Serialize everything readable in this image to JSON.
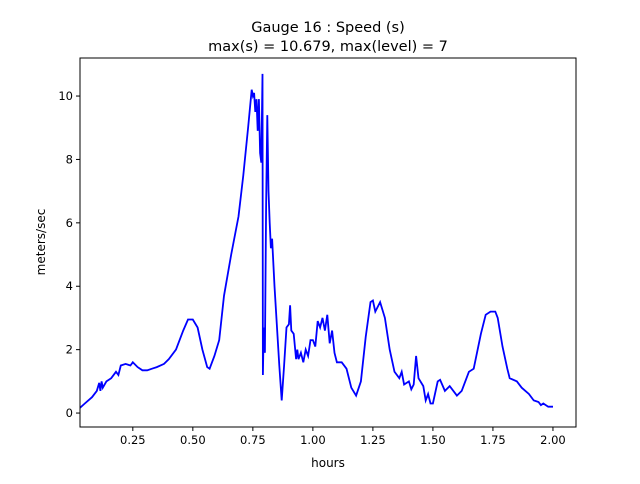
{
  "chart_data": {
    "type": "line",
    "title": "Gauge 16 : Speed (s)",
    "subtitle": "max(s) =  10.679,    max(level) = 7",
    "xlabel": "hours",
    "ylabel": "meters/sec",
    "xlim": [
      0.03,
      2.096
    ],
    "ylim": [
      -0.44,
      11.2
    ],
    "xticks": [
      0.25,
      0.5,
      0.75,
      1.0,
      1.25,
      1.5,
      1.75,
      2.0
    ],
    "xtick_labels": [
      "0.25",
      "0.50",
      "0.75",
      "1.00",
      "1.25",
      "1.50",
      "1.75",
      "2.00"
    ],
    "yticks": [
      0,
      2,
      4,
      6,
      8,
      10
    ],
    "ytick_labels": [
      "0",
      "2",
      "4",
      "6",
      "8",
      "10"
    ],
    "grid": false,
    "line_color": "#0000ff",
    "series": [
      {
        "x": [
          0.02,
          0.05,
          0.08,
          0.1,
          0.11,
          0.115,
          0.12,
          0.125,
          0.14,
          0.16,
          0.18,
          0.19,
          0.2,
          0.22,
          0.24,
          0.25,
          0.27,
          0.29,
          0.31,
          0.33,
          0.35,
          0.38,
          0.4,
          0.43,
          0.46,
          0.48,
          0.5,
          0.52,
          0.54,
          0.56,
          0.57,
          0.59,
          0.61,
          0.63,
          0.66,
          0.69,
          0.71,
          0.73,
          0.745,
          0.75,
          0.755,
          0.76,
          0.765,
          0.77,
          0.775,
          0.78,
          0.785,
          0.79,
          0.792,
          0.795,
          0.8,
          0.805,
          0.81,
          0.815,
          0.82,
          0.825,
          0.83,
          0.84,
          0.86,
          0.87,
          0.88,
          0.89,
          0.9,
          0.905,
          0.91,
          0.92,
          0.93,
          0.935,
          0.94,
          0.95,
          0.96,
          0.97,
          0.98,
          0.99,
          1.0,
          1.01,
          1.02,
          1.03,
          1.04,
          1.05,
          1.06,
          1.07,
          1.08,
          1.09,
          1.1,
          1.12,
          1.14,
          1.16,
          1.18,
          1.2,
          1.22,
          1.24,
          1.25,
          1.26,
          1.28,
          1.3,
          1.32,
          1.34,
          1.36,
          1.37,
          1.38,
          1.4,
          1.41,
          1.42,
          1.43,
          1.44,
          1.46,
          1.47,
          1.48,
          1.49,
          1.5,
          1.52,
          1.53,
          1.55,
          1.57,
          1.6,
          1.62,
          1.65,
          1.67,
          1.7,
          1.72,
          1.74,
          1.76,
          1.77,
          1.79,
          1.81,
          1.82,
          1.85,
          1.87,
          1.9,
          1.92,
          1.94,
          1.95,
          1.96,
          1.98,
          2.0
        ],
        "y": [
          0.1,
          0.3,
          0.5,
          0.7,
          0.95,
          0.7,
          1.0,
          0.8,
          1.0,
          1.1,
          1.3,
          1.2,
          1.5,
          1.55,
          1.5,
          1.6,
          1.45,
          1.35,
          1.35,
          1.4,
          1.45,
          1.55,
          1.7,
          2.0,
          2.6,
          2.95,
          2.95,
          2.7,
          2.0,
          1.45,
          1.4,
          1.8,
          2.3,
          3.7,
          5.0,
          6.2,
          7.5,
          9.0,
          10.2,
          10.0,
          10.1,
          9.5,
          9.9,
          8.9,
          9.9,
          8.2,
          7.9,
          10.7,
          1.2,
          2.7,
          1.9,
          6.5,
          9.4,
          7.0,
          6.0,
          5.2,
          5.5,
          4.0,
          1.5,
          0.4,
          1.5,
          2.7,
          2.8,
          3.4,
          2.6,
          2.5,
          1.7,
          2.0,
          1.7,
          1.9,
          1.6,
          2.0,
          1.8,
          2.3,
          2.3,
          2.1,
          2.9,
          2.7,
          3.0,
          2.6,
          3.1,
          2.2,
          2.6,
          1.9,
          1.6,
          1.6,
          1.4,
          0.8,
          0.55,
          1.0,
          2.4,
          3.5,
          3.55,
          3.2,
          3.5,
          3.0,
          2.0,
          1.3,
          1.1,
          1.3,
          0.9,
          1.0,
          0.75,
          0.9,
          1.8,
          1.1,
          0.85,
          0.4,
          0.6,
          0.3,
          0.3,
          1.0,
          1.05,
          0.7,
          0.85,
          0.55,
          0.7,
          1.3,
          1.4,
          2.5,
          3.1,
          3.2,
          3.2,
          3.0,
          2.1,
          1.4,
          1.1,
          1.0,
          0.8,
          0.6,
          0.4,
          0.35,
          0.25,
          0.3,
          0.2,
          0.2
        ]
      }
    ]
  }
}
